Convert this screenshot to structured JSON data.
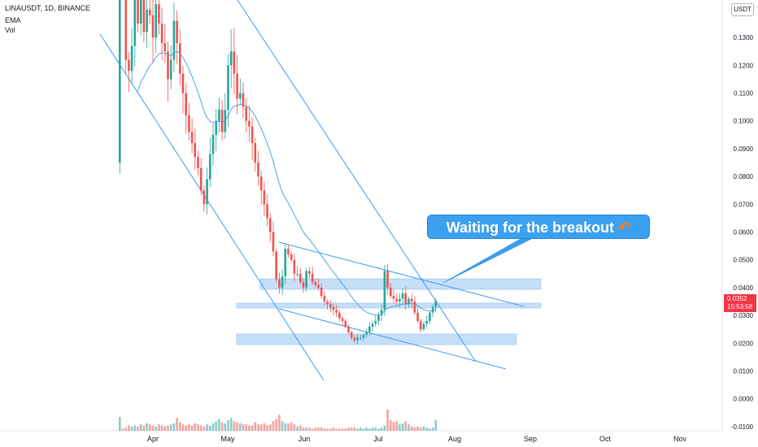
{
  "header": {
    "title": "LINAUSDT, 1D, BINANCE",
    "ema_label": "EMA",
    "vol_label": "Vol"
  },
  "price_axis": {
    "currency_badge": "USDT",
    "ticks": [
      "0.1300",
      "0.1200",
      "0.1100",
      "0.1000",
      "0.0900",
      "0.0800",
      "0.0700",
      "0.0600",
      "0.0500",
      "0.0400",
      "0.0300",
      "0.0200",
      "0.0100",
      "0.0000",
      "-0.0100"
    ]
  },
  "price_tag": {
    "price": "0.0352",
    "countdown": "15:53:58"
  },
  "annotation": {
    "text": "Waiting for the breakout",
    "icon": "orange-curved-arrow"
  },
  "colors": {
    "up": "#26a69a",
    "down": "#ef5350",
    "ema": "#4fa3e0",
    "trendline": "#3d9bf0",
    "zone": "#bcd9f8",
    "callout": "#3ba0f0",
    "price_tag": "#f23645"
  },
  "chart_data": {
    "type": "candlestick",
    "symbol": "LINAUSDT",
    "interval": "1D",
    "exchange": "BINANCE",
    "x_ticks": [
      "Apr",
      "May",
      "Jun",
      "Jul",
      "Aug",
      "Sep",
      "Oct",
      "Nov"
    ],
    "ylim": [
      -0.0115,
      0.1435
    ],
    "last_price": 0.0352,
    "price_path": [
      0.085,
      0.158,
      0.155,
      0.122,
      0.118,
      0.127,
      0.144,
      0.135,
      0.146,
      0.132,
      0.14,
      0.138,
      0.13,
      0.142,
      0.135,
      0.128,
      0.125,
      0.115,
      0.122,
      0.136,
      0.128,
      0.117,
      0.11,
      0.102,
      0.096,
      0.092,
      0.087,
      0.083,
      0.075,
      0.07,
      0.079,
      0.088,
      0.095,
      0.1,
      0.104,
      0.096,
      0.104,
      0.12,
      0.125,
      0.117,
      0.108,
      0.11,
      0.105,
      0.1,
      0.098,
      0.092,
      0.085,
      0.08,
      0.075,
      0.07,
      0.065,
      0.06,
      0.053,
      0.043,
      0.04,
      0.044,
      0.054,
      0.052,
      0.05,
      0.045,
      0.045,
      0.042,
      0.04,
      0.046,
      0.045,
      0.042,
      0.041,
      0.04,
      0.037,
      0.035,
      0.034,
      0.033,
      0.032,
      0.031,
      0.029,
      0.028,
      0.026,
      0.024,
      0.022,
      0.021,
      0.022,
      0.022,
      0.023,
      0.024,
      0.026,
      0.027,
      0.028,
      0.03,
      0.032,
      0.046,
      0.04,
      0.037,
      0.036,
      0.035,
      0.036,
      0.038,
      0.034,
      0.036,
      0.035,
      0.031,
      0.028,
      0.025,
      0.027,
      0.028,
      0.031,
      0.033,
      0.0352
    ],
    "volume_relative": [
      0.13,
      0.02,
      0.03,
      0.05,
      0.04,
      0.05,
      0.04,
      0.06,
      0.05,
      0.07,
      0.06,
      0.05,
      0.04,
      0.06,
      0.05,
      0.04,
      0.05,
      0.06,
      0.07,
      0.12,
      0.08,
      0.06,
      0.05,
      0.06,
      0.05,
      0.07,
      0.06,
      0.05,
      0.04,
      0.06,
      0.05,
      0.07,
      0.09,
      0.11,
      0.08,
      0.07,
      0.1,
      0.12,
      0.09,
      0.08,
      0.07,
      0.06,
      0.06,
      0.05,
      0.05,
      0.08,
      0.06,
      0.06,
      0.07,
      0.05,
      0.06,
      0.09,
      0.11,
      0.15,
      0.09,
      0.07,
      0.07,
      0.08,
      0.06,
      0.04,
      0.05,
      0.03,
      0.03,
      0.03,
      0.02,
      0.03,
      0.03,
      0.03,
      0.02,
      0.02,
      0.02,
      0.03,
      0.02,
      0.02,
      0.02,
      0.02,
      0.03,
      0.03,
      0.03,
      0.02,
      0.03,
      0.02,
      0.03,
      0.02,
      0.03,
      0.03,
      0.02,
      0.03,
      0.05,
      0.2,
      0.1,
      0.08,
      0.09,
      0.06,
      0.07,
      0.09,
      0.06,
      0.04,
      0.03,
      0.04,
      0.03,
      0.04,
      0.03,
      0.02,
      0.03,
      0.1,
      0.05
    ],
    "support_resistance_zones": [
      {
        "low": 0.0385,
        "high": 0.042
      },
      {
        "low": 0.0325,
        "high": 0.0342
      },
      {
        "low": 0.0185,
        "high": 0.0225
      }
    ],
    "annotation": "Waiting for the breakout"
  }
}
